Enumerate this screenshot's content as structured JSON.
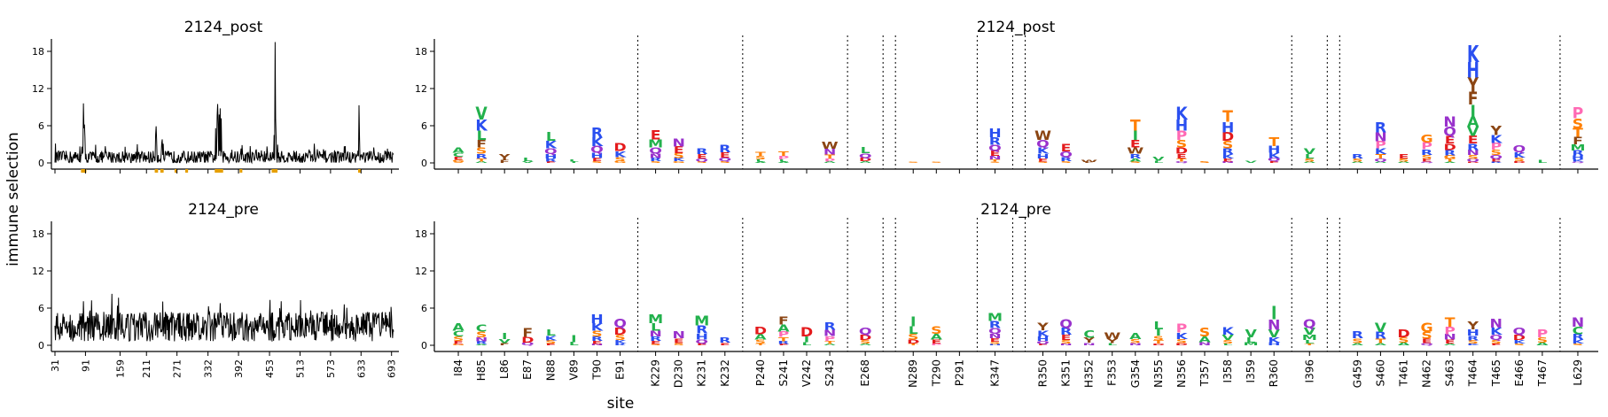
{
  "figure": {
    "ylabel": "immune selection",
    "xlabel": "site"
  },
  "chart_data": [
    {
      "type": "line",
      "title": "2124_post",
      "panel": "line-post",
      "ylim": [
        -1,
        20
      ],
      "yticks": [
        0,
        6,
        12,
        18
      ],
      "xlim": [
        31,
        697
      ],
      "xticks": [
        31,
        91,
        159,
        211,
        271,
        332,
        392,
        453,
        513,
        573,
        633,
        693
      ],
      "baseline": 0.9,
      "noise": 1.3,
      "peaks": [
        {
          "x": 87,
          "y": 9.6
        },
        {
          "x": 88,
          "y": 5.6
        },
        {
          "x": 89,
          "y": 6.2
        },
        {
          "x": 90,
          "y": 4.2
        },
        {
          "x": 229,
          "y": 4.6
        },
        {
          "x": 230,
          "y": 5.9
        },
        {
          "x": 231,
          "y": 3.6
        },
        {
          "x": 241,
          "y": 3.2
        },
        {
          "x": 242,
          "y": 3.8
        },
        {
          "x": 347,
          "y": 5.6
        },
        {
          "x": 350,
          "y": 7.6
        },
        {
          "x": 351,
          "y": 9.5
        },
        {
          "x": 352,
          "y": 6.3
        },
        {
          "x": 354,
          "y": 7.8
        },
        {
          "x": 356,
          "y": 8.8
        },
        {
          "x": 358,
          "y": 7.2
        },
        {
          "x": 464,
          "y": 19.5
        },
        {
          "x": 462,
          "y": 4.5
        },
        {
          "x": 465,
          "y": 7.2
        },
        {
          "x": 466,
          "y": 4.1
        },
        {
          "x": 629,
          "y": 9.3
        },
        {
          "x": 630,
          "y": 4.2
        }
      ],
      "highlight_ranges": [
        [
          84,
          91
        ],
        [
          229,
          232
        ],
        [
          240,
          243
        ],
        [
          268,
          268
        ],
        [
          289,
          291
        ],
        [
          347,
          347
        ],
        [
          350,
          360
        ],
        [
          396,
          396
        ],
        [
          459,
          467
        ],
        [
          629,
          629
        ]
      ]
    },
    {
      "type": "line",
      "title": "2124_pre",
      "panel": "line-pre",
      "ylim": [
        -1,
        20
      ],
      "yticks": [
        0,
        6,
        12,
        18
      ],
      "xlim": [
        31,
        697
      ],
      "xticks": [
        31,
        91,
        159,
        211,
        271,
        332,
        392,
        453,
        513,
        573,
        633,
        693
      ],
      "baseline": 3.0,
      "noise": 3.0,
      "peaks": [
        {
          "x": 87,
          "y": 7.1
        },
        {
          "x": 356,
          "y": 6.8
        },
        {
          "x": 600,
          "y": 6.6
        },
        {
          "x": 692,
          "y": 6.2
        }
      ],
      "highlight_ranges": []
    },
    {
      "type": "logo",
      "title": "2124_post",
      "panel": "logo-post",
      "ylim": [
        -1,
        20
      ],
      "yticks": [
        0,
        6,
        12,
        18
      ],
      "sites": [
        {
          "label": "I84",
          "height": 2.5,
          "letters": [
            "A",
            "C",
            "E",
            "G",
            "S"
          ]
        },
        {
          "label": "H85",
          "height": 9.0,
          "letters": [
            "V",
            "K",
            "L",
            "F",
            "S",
            "R",
            "T",
            "A"
          ]
        },
        {
          "label": "L86",
          "height": 1.4,
          "letters": [
            "Y",
            "F"
          ]
        },
        {
          "label": "E87",
          "height": 0.8,
          "letters": [
            "L",
            "V"
          ]
        },
        {
          "label": "N88",
          "height": 5.0,
          "letters": [
            "L",
            "K",
            "Q",
            "H",
            "R",
            "E"
          ]
        },
        {
          "label": "V89",
          "height": 0.6,
          "letters": [
            "L",
            "I"
          ]
        },
        {
          "label": "T90",
          "height": 5.7,
          "letters": [
            "R",
            "K",
            "Q",
            "H",
            "E",
            "S"
          ]
        },
        {
          "label": "E91",
          "height": 3.2,
          "letters": [
            "D",
            "K",
            "S",
            "G"
          ]
        },
        {
          "label": "K229",
          "height": 5.3,
          "letters": [
            "E",
            "M",
            "Q",
            "N",
            "R",
            "S"
          ]
        },
        {
          "label": "D230",
          "height": 4.0,
          "letters": [
            "N",
            "E",
            "S",
            "K",
            "G"
          ]
        },
        {
          "label": "K231",
          "height": 2.4,
          "letters": [
            "R",
            "E",
            "Q",
            "S"
          ]
        },
        {
          "label": "K232",
          "height": 2.9,
          "letters": [
            "R",
            "E",
            "Q",
            "S"
          ]
        },
        {
          "label": "P240",
          "height": 1.8,
          "letters": [
            "T",
            "S",
            "L",
            "A"
          ]
        },
        {
          "label": "S241",
          "height": 1.9,
          "letters": [
            "T",
            "P",
            "L",
            "A"
          ]
        },
        {
          "label": "V242",
          "height": 0.0,
          "letters": []
        },
        {
          "label": "S243",
          "height": 3.4,
          "letters": [
            "W",
            "N",
            "T",
            "P",
            "A"
          ]
        },
        {
          "label": "E268",
          "height": 2.6,
          "letters": [
            "L",
            "Q",
            "D",
            "A"
          ]
        },
        {
          "label": "N289",
          "height": 0.2,
          "letters": [
            "S"
          ]
        },
        {
          "label": "T290",
          "height": 0.2,
          "letters": [
            "S"
          ]
        },
        {
          "label": "P291",
          "height": 0.0,
          "letters": []
        },
        {
          "label": "K347",
          "height": 5.5,
          "letters": [
            "H",
            "R",
            "Q",
            "E",
            "N",
            "T",
            "S"
          ]
        },
        {
          "label": "R350",
          "height": 5.2,
          "letters": [
            "W",
            "Q",
            "K",
            "H",
            "E",
            "S"
          ]
        },
        {
          "label": "K351",
          "height": 3.1,
          "letters": [
            "E",
            "Q",
            "R",
            "S"
          ]
        },
        {
          "label": "H352",
          "height": 0.5,
          "letters": [
            "W",
            "F"
          ]
        },
        {
          "label": "F353",
          "height": 0.0,
          "letters": []
        },
        {
          "label": "G354",
          "height": 7.0,
          "letters": [
            "T",
            "I",
            "E",
            "W",
            "R",
            "A",
            "S"
          ]
        },
        {
          "label": "N355",
          "height": 1.0,
          "letters": [
            "V",
            "L"
          ]
        },
        {
          "label": "N356",
          "height": 9.0,
          "letters": [
            "K",
            "H",
            "P",
            "S",
            "D",
            "E",
            "T",
            "Q"
          ]
        },
        {
          "label": "T357",
          "height": 0.3,
          "letters": [
            "S"
          ]
        },
        {
          "label": "I358",
          "height": 8.5,
          "letters": [
            "T",
            "H",
            "D",
            "S",
            "R",
            "K",
            "E",
            "N"
          ]
        },
        {
          "label": "I359",
          "height": 0.4,
          "letters": [
            "V"
          ]
        },
        {
          "label": "R360",
          "height": 4.1,
          "letters": [
            "T",
            "H",
            "K",
            "Q",
            "E"
          ]
        },
        {
          "label": "I396",
          "height": 2.4,
          "letters": [
            "V",
            "L",
            "S",
            "A"
          ]
        },
        {
          "label": "G459",
          "height": 1.5,
          "letters": [
            "R",
            "S",
            "A"
          ]
        },
        {
          "label": "S460",
          "height": 6.6,
          "letters": [
            "R",
            "N",
            "P",
            "K",
            "T",
            "Q",
            "A"
          ]
        },
        {
          "label": "T461",
          "height": 1.5,
          "letters": [
            "E",
            "S",
            "A"
          ]
        },
        {
          "label": "N462",
          "height": 4.6,
          "letters": [
            "G",
            "P",
            "R",
            "S",
            "E",
            "Q"
          ]
        },
        {
          "label": "S463",
          "height": 7.5,
          "letters": [
            "N",
            "Q",
            "E",
            "D",
            "R",
            "G",
            "T",
            "A"
          ]
        },
        {
          "label": "T464",
          "height": 19.0,
          "letters": [
            "K",
            "H",
            "Y",
            "F",
            "I",
            "A",
            "V",
            "E",
            "R",
            "N",
            "S",
            "Q",
            "D"
          ]
        },
        {
          "label": "T465",
          "height": 6.0,
          "letters": [
            "Y",
            "K",
            "P",
            "S",
            "Q",
            "E",
            "R"
          ]
        },
        {
          "label": "E466",
          "height": 2.8,
          "letters": [
            "Q",
            "K",
            "S",
            "D"
          ]
        },
        {
          "label": "T467",
          "height": 0.5,
          "letters": [
            "L"
          ]
        },
        {
          "label": "L629",
          "height": 9.0,
          "letters": [
            "P",
            "S",
            "T",
            "F",
            "M",
            "R",
            "H",
            "K",
            "Q"
          ]
        }
      ],
      "group_breaks_after": [
        "E91",
        "K232",
        "S243",
        "E268",
        "P291",
        "K347",
        "R360",
        "I396",
        "T467"
      ],
      "extra_breaks_after": [
        "E268",
        "K347",
        "I396"
      ]
    },
    {
      "type": "logo",
      "title": "2124_pre",
      "panel": "logo-pre",
      "ylim": [
        -1,
        20
      ],
      "yticks": [
        0,
        6,
        12,
        18
      ],
      "sites": [
        {
          "label": "I84",
          "height": 3.5,
          "letters": [
            "A",
            "C",
            "S",
            "E",
            "G"
          ]
        },
        {
          "label": "H85",
          "height": 3.3,
          "letters": [
            "C",
            "S",
            "N",
            "R",
            "A"
          ]
        },
        {
          "label": "L86",
          "height": 2.0,
          "letters": [
            "I",
            "V",
            "F"
          ]
        },
        {
          "label": "E87",
          "height": 2.7,
          "letters": [
            "F",
            "D",
            "Q"
          ]
        },
        {
          "label": "N88",
          "height": 2.6,
          "letters": [
            "L",
            "K",
            "S",
            "E"
          ]
        },
        {
          "label": "V89",
          "height": 1.6,
          "letters": [
            "I",
            "L"
          ]
        },
        {
          "label": "T90",
          "height": 5.0,
          "letters": [
            "H",
            "K",
            "S",
            "R",
            "E",
            "N"
          ]
        },
        {
          "label": "E91",
          "height": 4.3,
          "letters": [
            "Q",
            "D",
            "S",
            "K",
            "R"
          ]
        },
        {
          "label": "K229",
          "height": 5.0,
          "letters": [
            "M",
            "L",
            "N",
            "R",
            "E",
            "S"
          ]
        },
        {
          "label": "D230",
          "height": 2.3,
          "letters": [
            "N",
            "E",
            "S"
          ]
        },
        {
          "label": "K231",
          "height": 4.8,
          "letters": [
            "M",
            "R",
            "H",
            "Q",
            "E"
          ]
        },
        {
          "label": "K232",
          "height": 1.2,
          "letters": [
            "R",
            "E"
          ]
        },
        {
          "label": "P240",
          "height": 3.0,
          "letters": [
            "D",
            "A",
            "S",
            "T"
          ]
        },
        {
          "label": "S241",
          "height": 4.7,
          "letters": [
            "F",
            "A",
            "P",
            "T",
            "R",
            "E"
          ]
        },
        {
          "label": "V242",
          "height": 2.9,
          "letters": [
            "D",
            "I",
            "L"
          ]
        },
        {
          "label": "S243",
          "height": 3.7,
          "letters": [
            "R",
            "N",
            "P",
            "T",
            "A"
          ]
        },
        {
          "label": "E268",
          "height": 2.8,
          "letters": [
            "Q",
            "D",
            "S",
            "A"
          ]
        },
        {
          "label": "N289",
          "height": 4.6,
          "letters": [
            "I",
            "L",
            "S",
            "D",
            "T"
          ]
        },
        {
          "label": "T290",
          "height": 3.1,
          "letters": [
            "S",
            "A",
            "E",
            "P"
          ]
        },
        {
          "label": "P291",
          "height": 0.0,
          "letters": []
        },
        {
          "label": "K347",
          "height": 5.2,
          "letters": [
            "M",
            "R",
            "Q",
            "N",
            "E",
            "S",
            "H"
          ]
        },
        {
          "label": "R350",
          "height": 3.6,
          "letters": [
            "Y",
            "K",
            "H",
            "Q",
            "E"
          ]
        },
        {
          "label": "K351",
          "height": 4.2,
          "letters": [
            "Q",
            "R",
            "E",
            "S",
            "N"
          ]
        },
        {
          "label": "H352",
          "height": 2.4,
          "letters": [
            "C",
            "Y",
            "N"
          ]
        },
        {
          "label": "F353",
          "height": 2.1,
          "letters": [
            "W",
            "Y",
            "L"
          ]
        },
        {
          "label": "G354",
          "height": 2.0,
          "letters": [
            "A",
            "S",
            "N"
          ]
        },
        {
          "label": "N355",
          "height": 3.9,
          "letters": [
            "L",
            "I",
            "S",
            "T",
            "D"
          ]
        },
        {
          "label": "N356",
          "height": 3.4,
          "letters": [
            "P",
            "K",
            "S",
            "D"
          ]
        },
        {
          "label": "T357",
          "height": 2.8,
          "letters": [
            "S",
            "A",
            "N"
          ]
        },
        {
          "label": "I358",
          "height": 2.9,
          "letters": [
            "K",
            "V",
            "S",
            "L"
          ]
        },
        {
          "label": "I359",
          "height": 2.6,
          "letters": [
            "V",
            "L",
            "M"
          ]
        },
        {
          "label": "R360",
          "height": 6.3,
          "letters": [
            "I",
            "N",
            "V",
            "K",
            "H"
          ]
        },
        {
          "label": "I396",
          "height": 4.2,
          "letters": [
            "Q",
            "V",
            "M",
            "L",
            "T"
          ]
        },
        {
          "label": "G459",
          "height": 2.3,
          "letters": [
            "R",
            "S",
            "A"
          ]
        },
        {
          "label": "S460",
          "height": 3.6,
          "letters": [
            "V",
            "R",
            "T",
            "A"
          ]
        },
        {
          "label": "T461",
          "height": 2.6,
          "letters": [
            "D",
            "S",
            "A"
          ]
        },
        {
          "label": "N462",
          "height": 3.6,
          "letters": [
            "G",
            "S",
            "E",
            "Q"
          ]
        },
        {
          "label": "S463",
          "height": 4.5,
          "letters": [
            "T",
            "P",
            "N",
            "E",
            "A"
          ]
        },
        {
          "label": "T464",
          "height": 3.9,
          "letters": [
            "Y",
            "H",
            "R",
            "S",
            "K"
          ]
        },
        {
          "label": "T465",
          "height": 4.3,
          "letters": [
            "N",
            "K",
            "Q",
            "S",
            "E"
          ]
        },
        {
          "label": "E466",
          "height": 2.8,
          "letters": [
            "Q",
            "D",
            "K",
            "S"
          ]
        },
        {
          "label": "T467",
          "height": 2.6,
          "letters": [
            "P",
            "S",
            "A"
          ]
        },
        {
          "label": "L629",
          "height": 4.5,
          "letters": [
            "N",
            "C",
            "R",
            "K",
            "S"
          ]
        }
      ],
      "group_breaks_after": [
        "E91",
        "K232",
        "S243",
        "E268",
        "P291",
        "K347",
        "R360",
        "I396",
        "T467"
      ],
      "extra_breaks_after": [
        "E268",
        "K347",
        "I396"
      ]
    }
  ],
  "colors": {
    "line": "#000000",
    "highlight": "#e69f00",
    "axis": "#000000",
    "acidic": "#e41a1c",
    "basic": "#2a4ff0",
    "hydrophobic": "#22b14c",
    "polar": "#ff7f00",
    "amide": "#9932cc",
    "aromatic": "#8b4513",
    "special": "#ff69b4"
  }
}
